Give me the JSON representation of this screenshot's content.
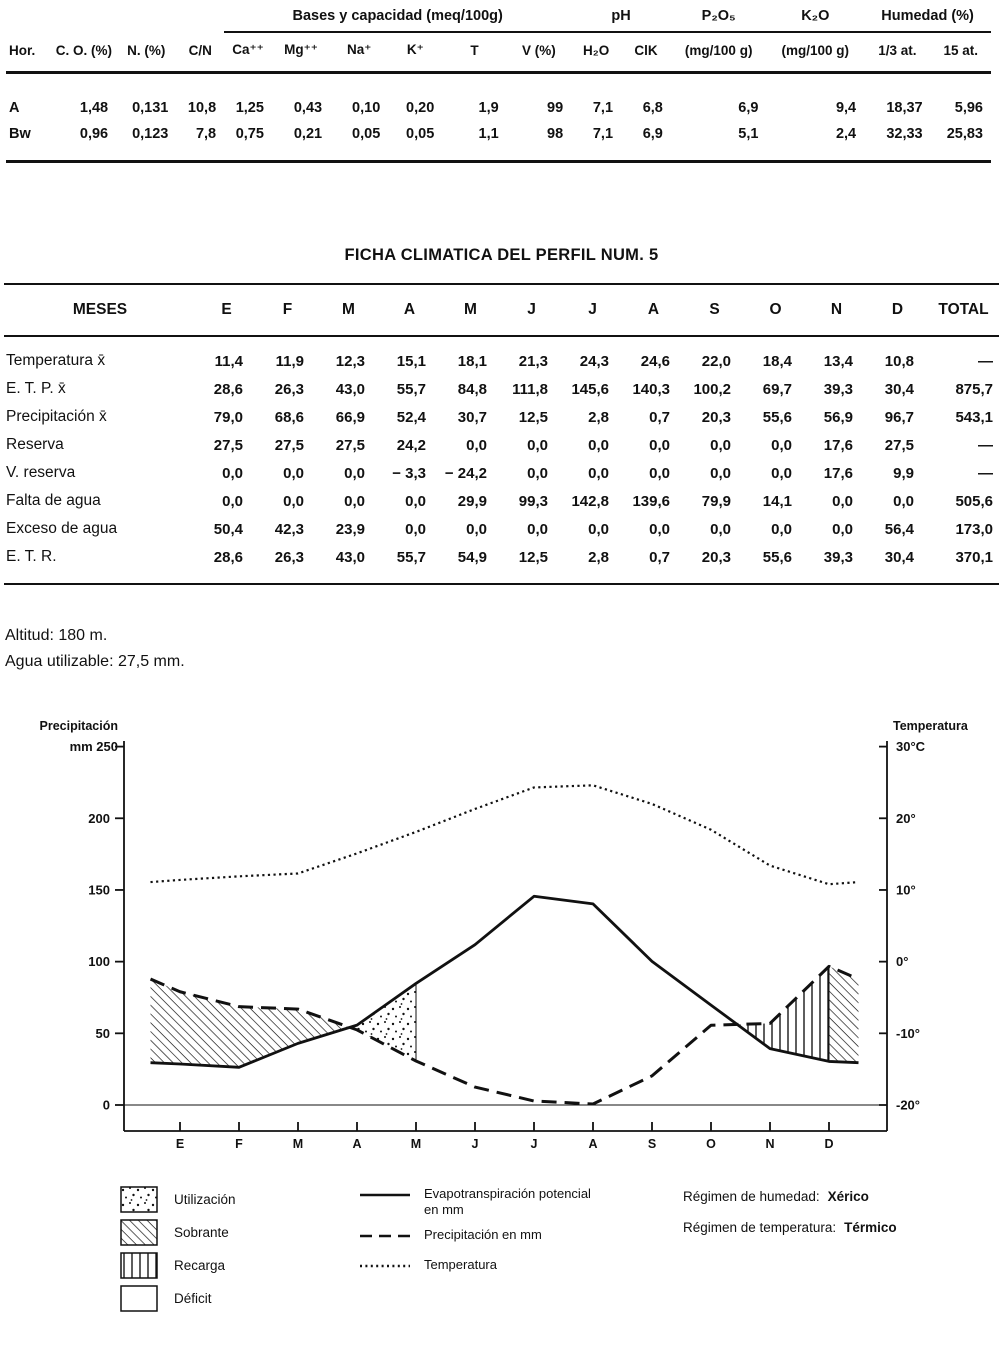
{
  "soil_table": {
    "group_headers": [
      {
        "label": "",
        "span": 4,
        "underline": false
      },
      {
        "label": "Bases y capacidad (meq/100g)",
        "span": 6,
        "underline": true
      },
      {
        "label": "pH",
        "span": 2,
        "underline": true
      },
      {
        "label": "P₂O₅",
        "span": 1,
        "underline": true
      },
      {
        "label": "K₂O",
        "span": 1,
        "underline": true
      },
      {
        "label": "Humedad (%)",
        "span": 2,
        "underline": true
      }
    ],
    "columns": [
      "Hor.",
      "C. O. (%)",
      "N. (%)",
      "C/N",
      "Ca⁺⁺",
      "Mg⁺⁺",
      "Na⁺",
      "K⁺",
      "T",
      "V (%)",
      "H₂O",
      "ClK",
      "(mg/100 g)",
      "(mg/100 g)",
      "1/3 at.",
      "15 at."
    ],
    "rows": [
      [
        "A",
        "1,48",
        "0,131",
        "10,8",
        "1,25",
        "0,43",
        "0,10",
        "0,20",
        "1,9",
        "99",
        "7,1",
        "6,8",
        "6,9",
        "9,4",
        "18,37",
        "5,96"
      ],
      [
        "Bw",
        "0,96",
        "0,123",
        "7,8",
        "0,75",
        "0,21",
        "0,05",
        "0,05",
        "1,1",
        "98",
        "7,1",
        "6,9",
        "5,1",
        "2,4",
        "32,33",
        "25,83"
      ]
    ]
  },
  "climate_table": {
    "title": "FICHA CLIMATICA DEL PERFIL NUM. 5",
    "columns": [
      "MESES",
      "E",
      "F",
      "M",
      "A",
      "M",
      "J",
      "J",
      "A",
      "S",
      "O",
      "N",
      "D",
      "TOTAL"
    ],
    "rows": [
      [
        "Temperatura x̄",
        "11,4",
        "11,9",
        "12,3",
        "15,1",
        "18,1",
        "21,3",
        "24,3",
        "24,6",
        "22,0",
        "18,4",
        "13,4",
        "10,8",
        "—"
      ],
      [
        "E. T. P. x̄",
        "28,6",
        "26,3",
        "43,0",
        "55,7",
        "84,8",
        "111,8",
        "145,6",
        "140,3",
        "100,2",
        "69,7",
        "39,3",
        "30,4",
        "875,7"
      ],
      [
        "Precipitación x̄",
        "79,0",
        "68,6",
        "66,9",
        "52,4",
        "30,7",
        "12,5",
        "2,8",
        "0,7",
        "20,3",
        "55,6",
        "56,9",
        "96,7",
        "543,1"
      ],
      [
        "Reserva",
        "27,5",
        "27,5",
        "27,5",
        "24,2",
        "0,0",
        "0,0",
        "0,0",
        "0,0",
        "0,0",
        "0,0",
        "17,6",
        "27,5",
        "—"
      ],
      [
        "V. reserva",
        "0,0",
        "0,0",
        "0,0",
        "− 3,3",
        "− 24,2",
        "0,0",
        "0,0",
        "0,0",
        "0,0",
        "0,0",
        "17,6",
        "9,9",
        "—"
      ],
      [
        "Falta de agua",
        "0,0",
        "0,0",
        "0,0",
        "0,0",
        "29,9",
        "99,3",
        "142,8",
        "139,6",
        "79,9",
        "14,1",
        "0,0",
        "0,0",
        "505,6"
      ],
      [
        "Exceso de agua",
        "50,4",
        "42,3",
        "23,9",
        "0,0",
        "0,0",
        "0,0",
        "0,0",
        "0,0",
        "0,0",
        "0,0",
        "0,0",
        "56,4",
        "173,0"
      ],
      [
        "E. T. R.",
        "28,6",
        "26,3",
        "43,0",
        "55,7",
        "54,9",
        "12,5",
        "2,8",
        "0,7",
        "20,3",
        "55,6",
        "39,3",
        "30,4",
        "370,1"
      ]
    ]
  },
  "notes": {
    "altitude": "Altitud: 180 m.",
    "usable_water": "Agua utilizable: 27,5 mm."
  },
  "chart_data": {
    "type": "area",
    "months": [
      "E",
      "F",
      "M",
      "A",
      "M",
      "J",
      "J",
      "A",
      "S",
      "O",
      "N",
      "D"
    ],
    "temperature_c": [
      11.4,
      11.9,
      12.3,
      15.1,
      18.1,
      21.3,
      24.3,
      24.6,
      22.0,
      18.4,
      13.4,
      10.8
    ],
    "etp_mm": [
      28.6,
      26.3,
      43.0,
      55.7,
      84.8,
      111.8,
      145.6,
      140.3,
      100.2,
      69.7,
      39.3,
      30.4
    ],
    "precipitation_mm": [
      79.0,
      68.6,
      66.9,
      52.4,
      30.7,
      12.5,
      2.8,
      0.7,
      20.3,
      55.6,
      56.9,
      96.7
    ],
    "left_axis": {
      "label": "Precipitación",
      "unit": "mm",
      "ticks": [
        250,
        200,
        150,
        100,
        50,
        0
      ],
      "range": [
        0,
        250
      ]
    },
    "right_axis": {
      "label": "Temperatura",
      "ticks_c": [
        30,
        20,
        10,
        0,
        -10,
        -20
      ],
      "tick_labels": [
        "30°C",
        "20°",
        "10°",
        "0°",
        "-10°",
        "-20°"
      ],
      "range": [
        -20,
        30
      ]
    },
    "utilization_end_month_index": 4,
    "recharge_end_month_index": 11,
    "grid": "zero-line-only",
    "ink_color": "#111111"
  },
  "legend": {
    "areas": [
      {
        "label": "Utilización",
        "pattern": "dots"
      },
      {
        "label": "Sobrante",
        "pattern": "diagonal-hatch"
      },
      {
        "label": "Recarga",
        "pattern": "vertical-hatch"
      },
      {
        "label": "Déficit",
        "pattern": "none"
      }
    ],
    "lines": [
      {
        "label": "Evapotranspiración potencial en mm",
        "style": "solid"
      },
      {
        "label": "Precipitación en mm",
        "style": "dashed"
      },
      {
        "label": "Temperatura",
        "style": "dotted"
      }
    ],
    "regimes": [
      {
        "label": "Régimen de humedad:",
        "value": "Xérico"
      },
      {
        "label": "Régimen de temperatura:",
        "value": "Térmico"
      }
    ]
  }
}
